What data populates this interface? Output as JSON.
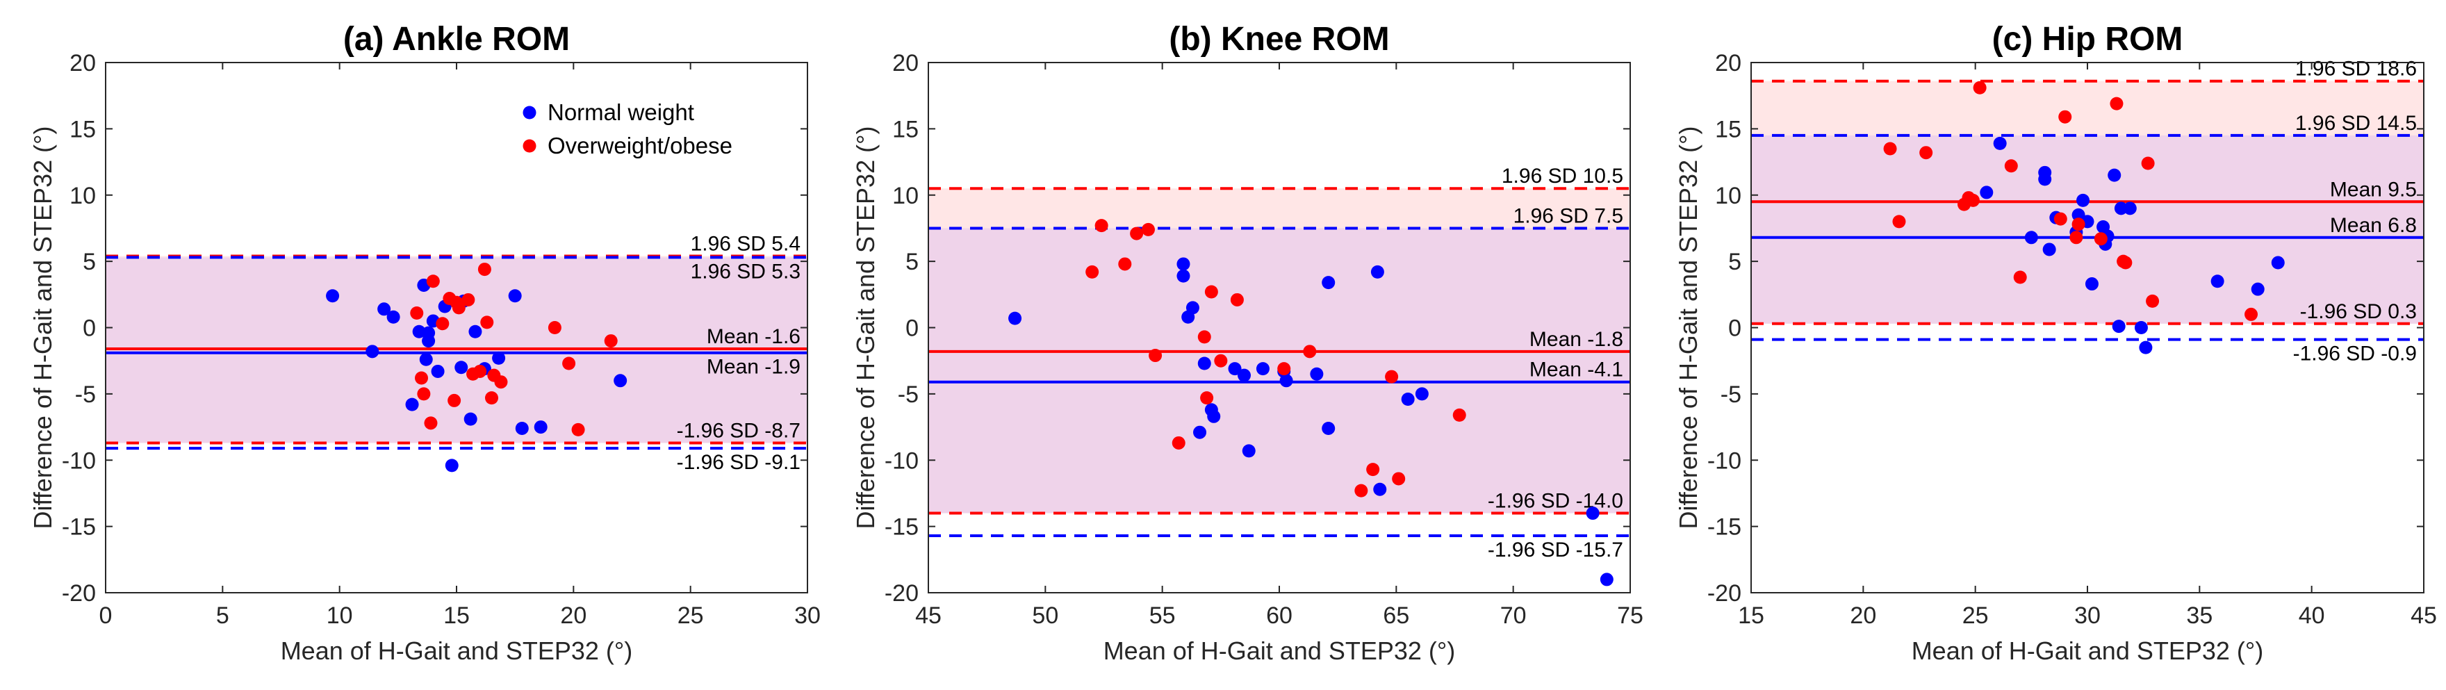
{
  "chart_data": [
    {
      "type": "scatter",
      "title": "(a) Ankle ROM",
      "xlabel": "Mean of H-Gait and STEP32 (°)",
      "ylabel": "Difference of H-Gait and STEP32 (°)",
      "xlim": [
        0,
        30
      ],
      "ylim": [
        -20,
        20
      ],
      "xticks": [
        "0",
        "5",
        "10",
        "15",
        "20",
        "25",
        "30"
      ],
      "yticks": [
        "-20",
        "-15",
        "-10",
        "-5",
        "0",
        "5",
        "10",
        "15",
        "20"
      ],
      "legend": {
        "position": "top-right",
        "entries": [
          {
            "label": "Normal weight",
            "color": "#0000ff"
          },
          {
            "label": "Overweight/obese",
            "color": "#ff0000"
          }
        ]
      },
      "series": [
        {
          "name": "Normal weight",
          "color": "#0000ff",
          "mean": -1.9,
          "upper": 5.3,
          "lower": -9.1,
          "points": [
            [
              9.7,
              2.4
            ],
            [
              11.9,
              1.4
            ],
            [
              11.4,
              -1.8
            ],
            [
              12.3,
              0.8
            ],
            [
              13.1,
              -5.8
            ],
            [
              13.4,
              -0.3
            ],
            [
              13.6,
              3.2
            ],
            [
              13.8,
              -1.0
            ],
            [
              13.7,
              -2.4
            ],
            [
              14.0,
              0.5
            ],
            [
              14.2,
              -3.3
            ],
            [
              14.5,
              1.6
            ],
            [
              14.8,
              -10.4
            ],
            [
              15.2,
              -3.0
            ],
            [
              15.3,
              2.0
            ],
            [
              15.6,
              -6.9
            ],
            [
              15.8,
              -0.3
            ],
            [
              16.2,
              -3.1
            ],
            [
              16.8,
              -2.3
            ],
            [
              17.5,
              2.4
            ],
            [
              17.8,
              -7.6
            ],
            [
              18.6,
              -7.5
            ],
            [
              22.0,
              -4.0
            ],
            [
              13.8,
              -0.4
            ]
          ]
        },
        {
          "name": "Overweight/obese",
          "color": "#ff0000",
          "mean": -1.6,
          "upper": 5.4,
          "lower": -8.7,
          "points": [
            [
              13.3,
              1.1
            ],
            [
              13.5,
              -3.8
            ],
            [
              13.6,
              -5.0
            ],
            [
              13.9,
              -7.2
            ],
            [
              14.0,
              3.5
            ],
            [
              14.4,
              0.3
            ],
            [
              14.7,
              2.2
            ],
            [
              15.0,
              1.9
            ],
            [
              15.1,
              1.5
            ],
            [
              14.9,
              -5.5
            ],
            [
              15.5,
              2.1
            ],
            [
              16.0,
              -3.3
            ],
            [
              16.2,
              4.4
            ],
            [
              16.3,
              0.4
            ],
            [
              16.6,
              -3.6
            ],
            [
              16.5,
              -5.3
            ],
            [
              16.9,
              -4.1
            ],
            [
              19.2,
              0.0
            ],
            [
              19.8,
              -2.7
            ],
            [
              20.2,
              -7.7
            ],
            [
              21.6,
              -1.0
            ],
            [
              15.7,
              -3.5
            ]
          ]
        }
      ],
      "annotations": [
        "1.96 SD 5.4",
        "1.96 SD 5.3",
        "Mean -1.6",
        "Mean -1.9",
        "-1.96 SD -8.7",
        "-1.96 SD -9.1"
      ]
    },
    {
      "type": "scatter",
      "title": "(b) Knee ROM",
      "xlabel": "Mean of H-Gait and STEP32 (°)",
      "ylabel": "Difference of H-Gait and STEP32 (°)",
      "xlim": [
        45,
        75
      ],
      "ylim": [
        -20,
        20
      ],
      "xticks": [
        "45",
        "50",
        "55",
        "60",
        "65",
        "70",
        "75"
      ],
      "yticks": [
        "-20",
        "-15",
        "-10",
        "-5",
        "0",
        "5",
        "10",
        "15",
        "20"
      ],
      "series": [
        {
          "name": "Normal weight",
          "color": "#0000ff",
          "mean": -4.1,
          "upper": 7.5,
          "lower": -15.7,
          "points": [
            [
              48.7,
              0.7
            ],
            [
              55.9,
              4.8
            ],
            [
              55.9,
              3.9
            ],
            [
              56.1,
              0.8
            ],
            [
              56.3,
              1.5
            ],
            [
              56.6,
              -7.9
            ],
            [
              56.8,
              -2.7
            ],
            [
              57.1,
              -6.2
            ],
            [
              57.2,
              -6.7
            ],
            [
              58.1,
              -3.1
            ],
            [
              58.5,
              -3.6
            ],
            [
              58.7,
              -9.3
            ],
            [
              59.3,
              -3.1
            ],
            [
              60.2,
              -3.3
            ],
            [
              60.3,
              -4.0
            ],
            [
              61.6,
              -3.5
            ],
            [
              62.1,
              3.4
            ],
            [
              62.1,
              -7.6
            ],
            [
              64.2,
              4.2
            ],
            [
              64.3,
              -12.2
            ],
            [
              65.5,
              -5.4
            ],
            [
              66.1,
              -5.0
            ],
            [
              73.4,
              -14.0
            ],
            [
              74.0,
              -19.0
            ]
          ]
        },
        {
          "name": "Overweight/obese",
          "color": "#ff0000",
          "mean": -1.8,
          "upper": 10.5,
          "lower": -14.0,
          "points": [
            [
              52.0,
              4.2
            ],
            [
              52.4,
              7.7
            ],
            [
              53.4,
              4.8
            ],
            [
              53.9,
              7.1
            ],
            [
              54.4,
              7.4
            ],
            [
              54.7,
              -2.1
            ],
            [
              55.7,
              -8.7
            ],
            [
              56.8,
              -0.7
            ],
            [
              56.9,
              -5.3
            ],
            [
              57.1,
              2.7
            ],
            [
              57.5,
              -2.5
            ],
            [
              58.2,
              2.1
            ],
            [
              60.2,
              -3.1
            ],
            [
              61.3,
              -1.8
            ],
            [
              63.5,
              -12.3
            ],
            [
              64.0,
              -10.7
            ],
            [
              64.8,
              -3.7
            ],
            [
              65.1,
              -11.4
            ],
            [
              67.7,
              -6.6
            ]
          ]
        }
      ],
      "annotations": [
        "1.96 SD 10.5",
        "1.96 SD 7.5",
        "Mean -1.8",
        "Mean -4.1",
        "-1.96 SD -14.0",
        "-1.96 SD -15.7"
      ]
    },
    {
      "type": "scatter",
      "title": "(c) Hip ROM",
      "xlabel": "Mean of H-Gait and STEP32 (°)",
      "ylabel": "Difference of H-Gait and STEP32 (°)",
      "xlim": [
        15,
        45
      ],
      "ylim": [
        -20,
        20
      ],
      "xticks": [
        "15",
        "20",
        "25",
        "30",
        "35",
        "40",
        "45"
      ],
      "yticks": [
        "-20",
        "-15",
        "-10",
        "-5",
        "0",
        "5",
        "10",
        "15",
        "20"
      ],
      "series": [
        {
          "name": "Normal weight",
          "color": "#0000ff",
          "mean": 6.8,
          "upper": 14.5,
          "lower": -0.9,
          "points": [
            [
              25.5,
              10.2
            ],
            [
              26.1,
              13.9
            ],
            [
              27.5,
              6.8
            ],
            [
              28.1,
              11.7
            ],
            [
              28.1,
              11.2
            ],
            [
              28.3,
              5.9
            ],
            [
              28.6,
              8.3
            ],
            [
              29.5,
              7.2
            ],
            [
              29.6,
              8.5
            ],
            [
              29.8,
              9.6
            ],
            [
              30.0,
              8.0
            ],
            [
              30.2,
              3.3
            ],
            [
              30.7,
              7.6
            ],
            [
              30.8,
              6.3
            ],
            [
              31.2,
              11.5
            ],
            [
              31.4,
              0.1
            ],
            [
              31.5,
              9.0
            ],
            [
              31.9,
              9.0
            ],
            [
              32.4,
              0.0
            ],
            [
              32.6,
              -1.5
            ],
            [
              35.8,
              3.5
            ],
            [
              37.6,
              2.9
            ],
            [
              38.5,
              4.9
            ],
            [
              30.9,
              6.9
            ]
          ]
        },
        {
          "name": "Overweight/obese",
          "color": "#ff0000",
          "mean": 9.5,
          "upper": 18.6,
          "lower": 0.3,
          "points": [
            [
              21.2,
              13.5
            ],
            [
              21.6,
              8.0
            ],
            [
              22.8,
              13.2
            ],
            [
              24.5,
              9.3
            ],
            [
              24.7,
              9.8
            ],
            [
              25.2,
              18.1
            ],
            [
              26.6,
              12.2
            ],
            [
              27.0,
              3.8
            ],
            [
              28.8,
              8.2
            ],
            [
              29.0,
              15.9
            ],
            [
              29.5,
              6.8
            ],
            [
              29.6,
              7.8
            ],
            [
              30.6,
              6.7
            ],
            [
              31.3,
              16.9
            ],
            [
              31.6,
              5.0
            ],
            [
              31.7,
              4.9
            ],
            [
              32.7,
              12.4
            ],
            [
              32.9,
              2.0
            ],
            [
              37.3,
              1.0
            ],
            [
              24.9,
              9.6
            ]
          ]
        }
      ],
      "annotations": [
        "1.96 SD 18.6",
        "1.96 SD 14.5",
        "Mean 9.5",
        "Mean 6.8",
        "-1.96 SD 0.3",
        "-1.96 SD -0.9"
      ]
    }
  ]
}
